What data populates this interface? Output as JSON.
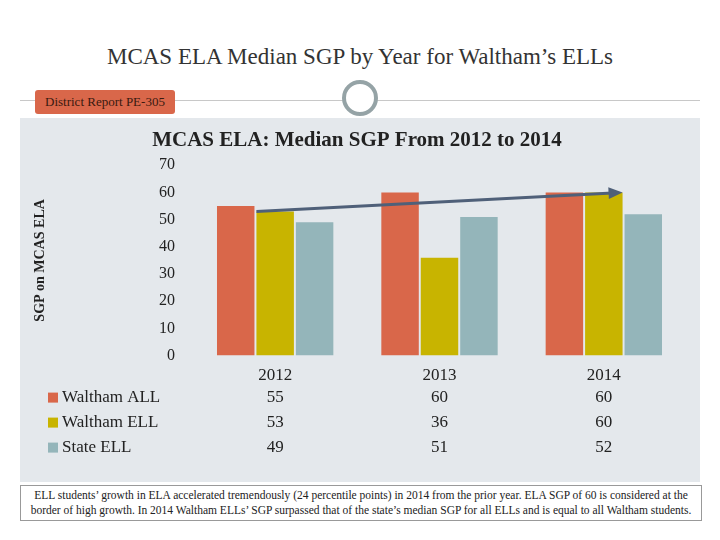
{
  "slide_title": "MCAS ELA Median SGP by Year for Waltham’s ELLs",
  "report_label": "District Report PE-305",
  "note": "ELL students’ growth in ELA accelerated tremendously (24 percentile points) in 2014 from the prior year.  ELA SGP of 60 is considered at the border of high growth. In 2014 Waltham ELLs’ SGP surpassed that of the state’s median SGP for all ELLs and is equal to all Waltham students.",
  "chart_data": {
    "type": "bar",
    "title": "MCAS ELA: Median SGP From 2012 to 2014",
    "y_label": "SGP on MCAS ELA",
    "categories": [
      "2012",
      "2013",
      "2014"
    ],
    "series": [
      {
        "name": "Waltham ALL",
        "color": "#d9674a",
        "values": [
          55,
          60,
          60
        ]
      },
      {
        "name": "Waltham ELL",
        "color": "#c8b400",
        "values": [
          53,
          36,
          60
        ]
      },
      {
        "name": "State ELL",
        "color": "#94b5ba",
        "values": [
          49,
          51,
          52
        ]
      }
    ],
    "ylim": [
      0,
      70
    ],
    "yticks": [
      0,
      10,
      20,
      30,
      40,
      50,
      60,
      70
    ],
    "grid": false
  }
}
